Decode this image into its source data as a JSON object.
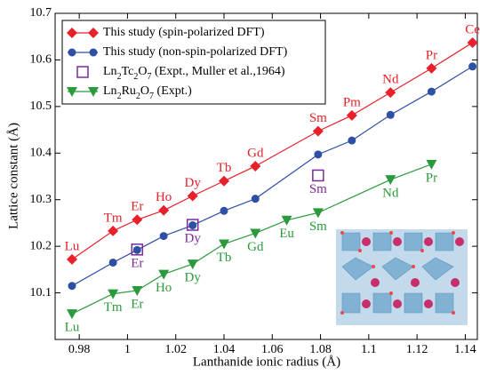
{
  "chart_data": {
    "type": "line",
    "x_label": "Lanthanide ionic radius (Å)",
    "y_label": "Lattice constant (Å)",
    "xlim": [
      0.97,
      1.145
    ],
    "xticks": [
      0.98,
      1,
      1.02,
      1.04,
      1.06,
      1.08,
      1.1,
      1.12,
      1.14
    ],
    "ylim": [
      10.0,
      10.7
    ],
    "yticks": [
      10.1,
      10.2,
      10.3,
      10.4,
      10.5,
      10.6,
      10.7
    ],
    "legend": "upper left",
    "series": [
      {
        "name": "This study (spin-polarized DFT)",
        "color": "#e8202a",
        "marker": "diamond",
        "line": true,
        "x": [
          0.977,
          0.994,
          1.004,
          1.015,
          1.027,
          1.04,
          1.053,
          1.079,
          1.093,
          1.109,
          1.126,
          1.143
        ],
        "values": [
          10.172,
          10.233,
          10.257,
          10.277,
          10.308,
          10.34,
          10.372,
          10.447,
          10.481,
          10.53,
          10.582,
          10.637
        ],
        "labels": [
          "Lu",
          "Tm",
          "Er",
          "Ho",
          "Dy",
          "Tb",
          "Gd",
          "Sm",
          "Pm",
          "Nd",
          "Pr",
          "Ce"
        ]
      },
      {
        "name": "This study (non-spin-polarized DFT)",
        "color": "#2e4fa6",
        "marker": "circle",
        "line": true,
        "x": [
          0.977,
          0.994,
          1.004,
          1.015,
          1.027,
          1.04,
          1.053,
          1.079,
          1.093,
          1.109,
          1.126,
          1.143
        ],
        "values": [
          10.115,
          10.165,
          10.192,
          10.222,
          10.245,
          10.276,
          10.302,
          10.397,
          10.427,
          10.482,
          10.532,
          10.586
        ]
      },
      {
        "name": "Ln2Tc2O7 (Expt., Muller et al.,1964)",
        "color": "#7a2a9a",
        "marker": "square",
        "line": false,
        "x": [
          1.004,
          1.027,
          1.079
        ],
        "values": [
          10.193,
          10.246,
          10.352
        ],
        "labels": [
          "Er",
          "Dy",
          "Sm"
        ]
      },
      {
        "name": "Ln2Ru2O7 (Expt.)",
        "color": "#2b9a3c",
        "marker": "triangle",
        "line": true,
        "x": [
          0.977,
          0.994,
          1.004,
          1.015,
          1.027,
          1.04,
          1.053,
          1.066,
          1.079,
          1.109,
          1.126
        ],
        "values": [
          10.055,
          10.098,
          10.105,
          10.14,
          10.162,
          10.205,
          10.228,
          10.256,
          10.272,
          10.343,
          10.376
        ],
        "labels": [
          "Lu",
          "Tm",
          "Er",
          "Ho",
          "Dy",
          "Tb",
          "Gd",
          "Eu",
          "Sm",
          "Nd",
          "Pr"
        ]
      }
    ]
  }
}
